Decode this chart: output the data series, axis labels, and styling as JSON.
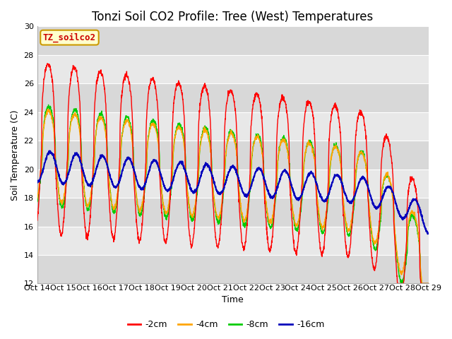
{
  "title": "Tonzi Soil CO2 Profile: Tree (West) Temperatures",
  "xlabel": "Time",
  "ylabel": "Soil Temperature (C)",
  "ylim": [
    12,
    30
  ],
  "yticks": [
    12,
    14,
    16,
    18,
    20,
    22,
    24,
    26,
    28,
    30
  ],
  "xlim": [
    0,
    15
  ],
  "xtick_labels": [
    "Oct 14",
    "Oct 15",
    "Oct 16",
    "Oct 17",
    "Oct 18",
    "Oct 19",
    "Oct 20",
    "Oct 21",
    "Oct 22",
    "Oct 23",
    "Oct 24",
    "Oct 25",
    "Oct 26",
    "Oct 27",
    "Oct 28",
    "Oct 29"
  ],
  "series_colors": [
    "#ff0000",
    "#ffa500",
    "#00cc00",
    "#0000bb"
  ],
  "series_labels": [
    "-2cm",
    "-4cm",
    "-8cm",
    "-16cm"
  ],
  "legend_title": "TZ_soilco2",
  "background_color": "#ffffff",
  "plot_bg_color": "#e8e8e8",
  "title_fontsize": 12,
  "axis_fontsize": 9,
  "tick_fontsize": 8,
  "legend_fontsize": 9
}
